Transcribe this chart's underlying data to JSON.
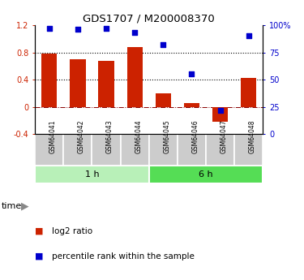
{
  "title": "GDS1707 / M200008370",
  "samples": [
    "GSM64041",
    "GSM64042",
    "GSM64043",
    "GSM64044",
    "GSM64045",
    "GSM64046",
    "GSM64047",
    "GSM64048"
  ],
  "log2_ratio": [
    0.78,
    0.7,
    0.68,
    0.88,
    0.2,
    0.05,
    -0.22,
    0.43
  ],
  "percentile_rank": [
    97,
    96,
    97,
    93,
    82,
    55,
    22,
    90
  ],
  "groups": [
    {
      "label": "1 h",
      "indices": [
        0,
        1,
        2,
        3
      ],
      "color": "#b8f0b8"
    },
    {
      "label": "6 h",
      "indices": [
        4,
        5,
        6,
        7
      ],
      "color": "#55dd55"
    }
  ],
  "bar_color": "#cc2200",
  "dot_color": "#0000cc",
  "ylim_left": [
    -0.4,
    1.2
  ],
  "ylim_right": [
    0,
    100
  ],
  "yticks_left": [
    -0.4,
    0.0,
    0.4,
    0.8,
    1.2
  ],
  "yticks_right": [
    0,
    25,
    50,
    75,
    100
  ],
  "ytick_labels_left": [
    "-0.4",
    "0",
    "0.4",
    "0.8",
    "1.2"
  ],
  "ytick_labels_right": [
    "0",
    "25",
    "50",
    "75",
    "100%"
  ],
  "hlines": [
    0.8,
    0.4
  ],
  "zero_line": 0.0,
  "background_color": "#ffffff",
  "bar_width": 0.55,
  "cell_color": "#cccccc",
  "legend_items": [
    "log2 ratio",
    "percentile rank within the sample"
  ]
}
